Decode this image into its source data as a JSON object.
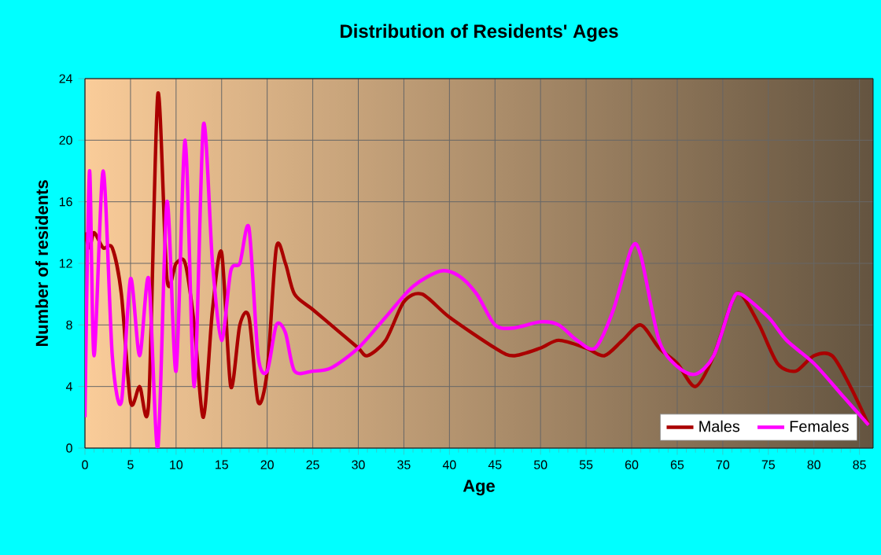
{
  "chart_data": {
    "type": "line",
    "title": "Distribution of Residents' Ages",
    "xlabel": "Age",
    "ylabel": "Number of residents",
    "xlim": [
      0,
      86.5
    ],
    "ylim": [
      0,
      24
    ],
    "xticks": [
      0,
      5,
      10,
      15,
      20,
      25,
      30,
      35,
      40,
      45,
      50,
      55,
      60,
      65,
      70,
      75,
      80,
      85
    ],
    "yticks": [
      0,
      4,
      8,
      12,
      16,
      20,
      24
    ],
    "grid": true,
    "legend": "bottom right",
    "series": [
      {
        "name": "Males",
        "color": "#aa0000",
        "x": [
          0,
          0.5,
          1,
          2,
          3,
          4,
          5,
          6,
          7,
          8,
          9,
          10,
          11,
          12,
          13,
          14,
          15,
          16,
          17,
          18,
          19,
          20,
          21,
          22,
          23,
          25,
          28,
          30,
          31,
          33,
          35,
          37,
          40,
          45,
          47,
          50,
          52,
          55,
          57,
          59,
          61,
          63,
          65,
          67,
          69,
          71,
          72,
          74,
          76,
          78,
          80,
          82,
          84,
          86
        ],
        "values": [
          14,
          13,
          14,
          13,
          13,
          10,
          3,
          4,
          3,
          23,
          11,
          12,
          12,
          8,
          2,
          9,
          12.7,
          4,
          8,
          8.5,
          3,
          5,
          13,
          12,
          10,
          9,
          7.5,
          6.5,
          6,
          7,
          9.5,
          10,
          8.5,
          6.5,
          6,
          6.5,
          7,
          6.5,
          6,
          7,
          8,
          6.5,
          5.5,
          4,
          6,
          9.5,
          10,
          8,
          5.5,
          5,
          6,
          6,
          4,
          1.5
        ]
      },
      {
        "name": "Females",
        "color": "#ff00ff",
        "x": [
          0,
          0.5,
          1,
          2,
          3,
          4,
          5,
          6,
          7,
          8,
          9,
          10,
          11,
          12,
          13,
          14,
          15,
          16,
          17,
          18,
          19,
          20,
          21,
          22,
          23,
          25,
          27,
          30,
          33,
          36,
          39,
          41,
          43,
          45,
          47,
          50,
          52,
          54,
          56,
          58,
          60,
          61,
          63,
          65,
          67,
          69,
          71,
          72,
          75,
          77,
          80,
          83,
          86
        ],
        "values": [
          2,
          18,
          6,
          18,
          6,
          3,
          11,
          6,
          11,
          0,
          16,
          5,
          20,
          4,
          21,
          12,
          7,
          11.5,
          12,
          14.3,
          6,
          5,
          8,
          7.5,
          5,
          5,
          5.2,
          6.5,
          8.5,
          10.5,
          11.5,
          11.2,
          10,
          8,
          7.8,
          8.2,
          8,
          7,
          6.5,
          9,
          13,
          12.5,
          7,
          5.3,
          4.8,
          6,
          9.5,
          10,
          8.5,
          7,
          5.5,
          3.5,
          1.5
        ]
      }
    ]
  }
}
